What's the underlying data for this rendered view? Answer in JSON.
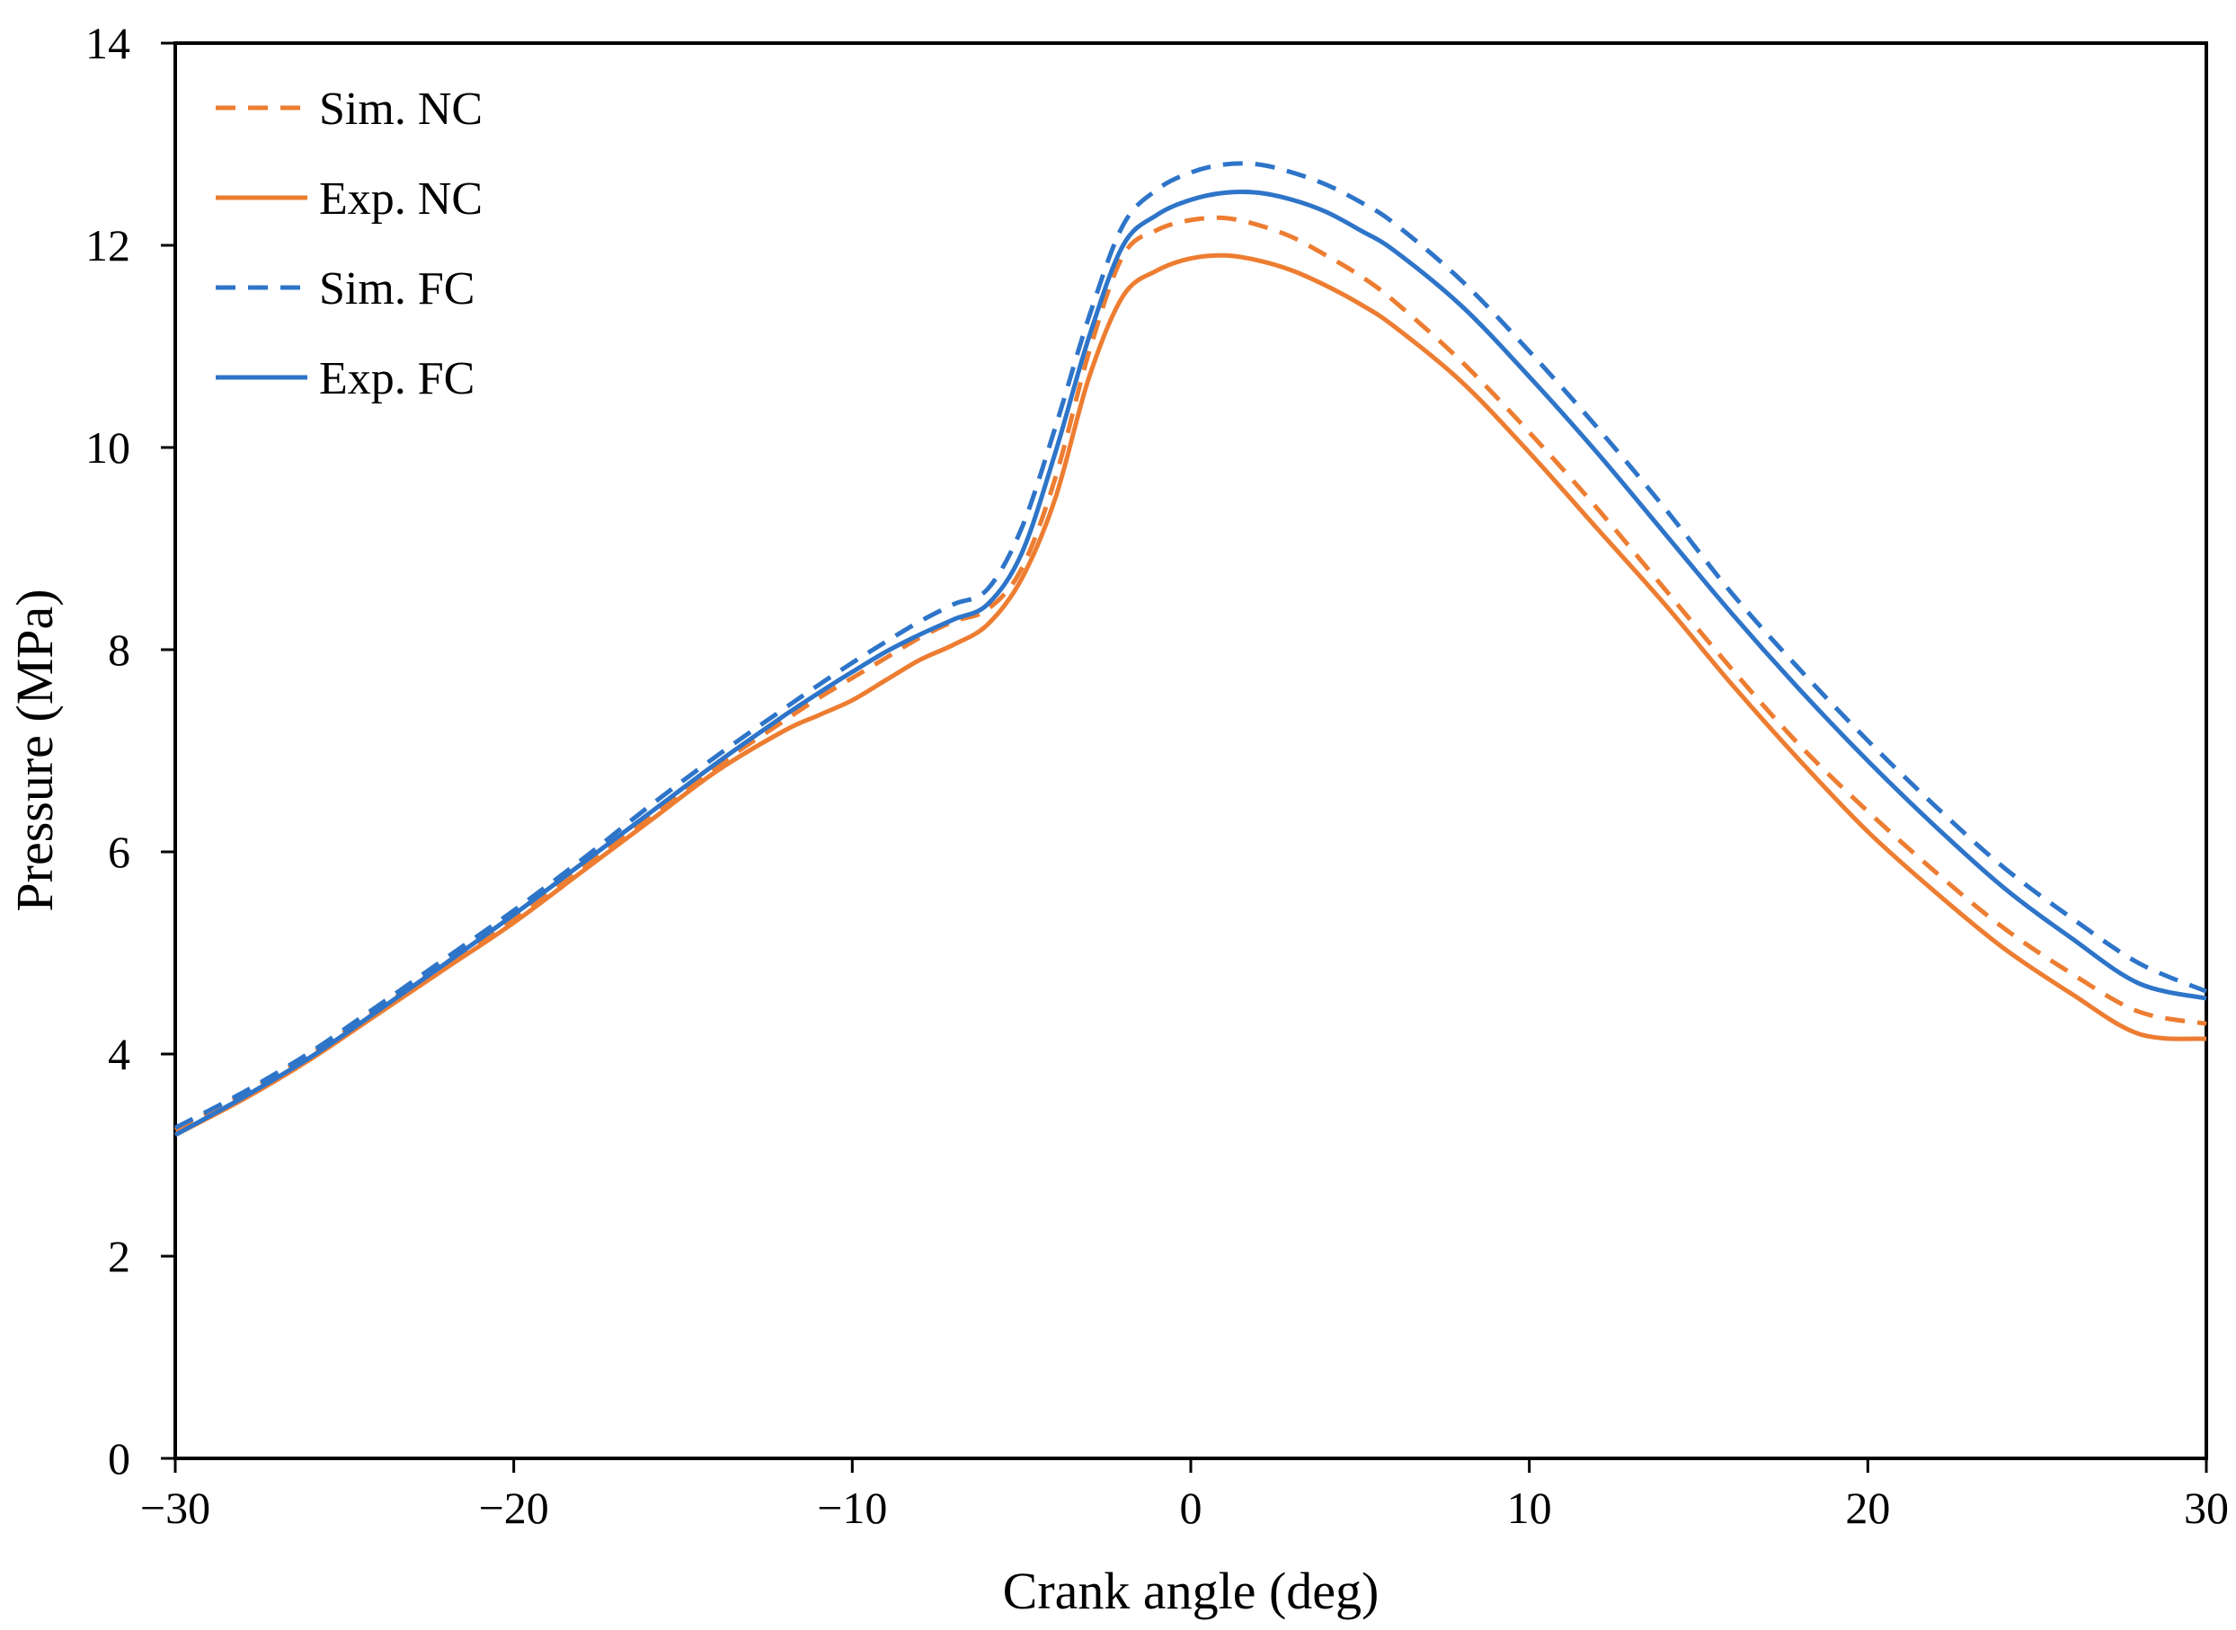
{
  "chart_data": {
    "type": "line",
    "title": "",
    "xlabel": "Crank angle (deg)",
    "ylabel": "Pressure (MPa)",
    "xlim": [
      -30,
      30
    ],
    "ylim": [
      0,
      14
    ],
    "xticks": [
      -30,
      -20,
      -10,
      0,
      10,
      20,
      30
    ],
    "xtick_labels": [
      "−30",
      "−20",
      "−10",
      "0",
      "10",
      "20",
      "30"
    ],
    "yticks": [
      0,
      2,
      4,
      6,
      8,
      10,
      12,
      14
    ],
    "ytick_labels": [
      "0",
      "2",
      "4",
      "6",
      "8",
      "10",
      "12",
      "14"
    ],
    "grid": false,
    "legend_position": "top-left",
    "series": [
      {
        "name": "Sim. NC",
        "color": "#ED7D31",
        "style": "dashed",
        "x": [
          -30,
          -28,
          -26,
          -24,
          -22,
          -20,
          -18,
          -16,
          -14,
          -12,
          -11,
          -10,
          -9,
          -8,
          -7,
          -6,
          -5,
          -4,
          -3,
          -2,
          -1,
          0,
          1,
          2,
          3,
          4,
          5,
          6,
          8,
          10,
          12,
          14,
          16,
          18,
          20,
          22,
          24,
          26,
          28,
          30
        ],
        "values": [
          3.25,
          3.6,
          4.0,
          4.45,
          4.9,
          5.35,
          5.85,
          6.35,
          6.85,
          7.3,
          7.52,
          7.72,
          7.92,
          8.12,
          8.28,
          8.4,
          8.8,
          9.7,
          10.95,
          11.9,
          12.15,
          12.25,
          12.27,
          12.2,
          12.08,
          11.9,
          11.7,
          11.45,
          10.85,
          10.15,
          9.4,
          8.6,
          7.8,
          7.05,
          6.4,
          5.8,
          5.25,
          4.8,
          4.42,
          4.3
        ]
      },
      {
        "name": "Exp. NC",
        "color": "#ED7D31",
        "style": "solid",
        "x": [
          -30,
          -28,
          -26,
          -24,
          -22,
          -20,
          -18,
          -16,
          -14,
          -12,
          -11,
          -10,
          -9,
          -8,
          -7,
          -6,
          -5,
          -4,
          -3,
          -2,
          -1,
          0,
          1,
          2,
          3,
          4,
          5,
          6,
          8,
          10,
          12,
          14,
          16,
          18,
          20,
          22,
          24,
          26,
          28,
          30
        ],
        "values": [
          3.2,
          3.55,
          3.95,
          4.4,
          4.85,
          5.3,
          5.8,
          6.3,
          6.8,
          7.2,
          7.35,
          7.5,
          7.7,
          7.9,
          8.05,
          8.25,
          8.7,
          9.5,
          10.7,
          11.5,
          11.75,
          11.87,
          11.9,
          11.85,
          11.75,
          11.6,
          11.42,
          11.2,
          10.65,
          9.95,
          9.2,
          8.45,
          7.65,
          6.9,
          6.2,
          5.6,
          5.05,
          4.6,
          4.2,
          4.15
        ]
      },
      {
        "name": "Sim. FC",
        "color": "#2E75C9",
        "style": "dashed",
        "x": [
          -30,
          -28,
          -26,
          -24,
          -22,
          -20,
          -18,
          -16,
          -14,
          -12,
          -11,
          -10,
          -9,
          -8,
          -7,
          -6,
          -5,
          -4,
          -3,
          -2,
          -1,
          0,
          1,
          2,
          3,
          4,
          5,
          6,
          8,
          10,
          12,
          14,
          16,
          18,
          20,
          22,
          24,
          26,
          28,
          30
        ],
        "values": [
          3.27,
          3.62,
          4.02,
          4.48,
          4.95,
          5.42,
          5.92,
          6.45,
          6.95,
          7.42,
          7.65,
          7.87,
          8.08,
          8.28,
          8.45,
          8.6,
          9.2,
          10.2,
          11.3,
          12.2,
          12.55,
          12.72,
          12.8,
          12.8,
          12.72,
          12.6,
          12.43,
          12.22,
          11.65,
          10.95,
          10.2,
          9.4,
          8.55,
          7.8,
          7.1,
          6.45,
          5.85,
          5.35,
          4.9,
          4.62
        ]
      },
      {
        "name": "Exp. FC",
        "color": "#2E75C9",
        "style": "solid",
        "x": [
          -30,
          -28,
          -26,
          -24,
          -22,
          -20,
          -18,
          -16,
          -14,
          -12,
          -11,
          -10,
          -9,
          -8,
          -7,
          -6,
          -5,
          -4,
          -3,
          -2,
          -1,
          0,
          1,
          2,
          3,
          4,
          5,
          6,
          8,
          10,
          12,
          14,
          16,
          18,
          20,
          22,
          24,
          26,
          28,
          30
        ],
        "values": [
          3.2,
          3.57,
          3.97,
          4.43,
          4.9,
          5.38,
          5.88,
          6.38,
          6.88,
          7.35,
          7.57,
          7.78,
          7.98,
          8.15,
          8.3,
          8.45,
          8.95,
          9.95,
          11.1,
          12.0,
          12.3,
          12.45,
          12.52,
          12.52,
          12.45,
          12.33,
          12.15,
          11.95,
          11.4,
          10.7,
          9.95,
          9.15,
          8.35,
          7.6,
          6.9,
          6.25,
          5.65,
          5.15,
          4.7,
          4.55
        ]
      }
    ]
  }
}
